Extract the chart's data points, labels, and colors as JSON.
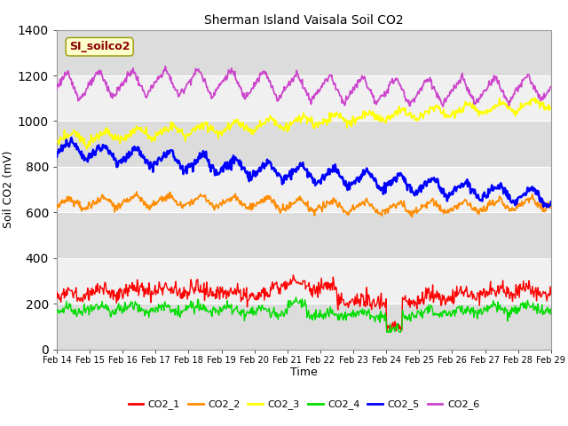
{
  "title": "Sherman Island Vaisala Soil CO2",
  "xlabel": "Time",
  "ylabel": "Soil CO2 (mV)",
  "legend_label": "SI_soilco2",
  "x_tick_labels": [
    "Feb 14",
    "Feb 15",
    "Feb 16",
    "Feb 17",
    "Feb 18",
    "Feb 19",
    "Feb 20",
    "Feb 21",
    "Feb 22",
    "Feb 23",
    "Feb 24",
    "Feb 25",
    "Feb 26",
    "Feb 27",
    "Feb 28",
    "Feb 29"
  ],
  "ylim": [
    0,
    1400
  ],
  "yticks": [
    0,
    200,
    400,
    600,
    800,
    1000,
    1200,
    1400
  ],
  "series_names": [
    "CO2_1",
    "CO2_2",
    "CO2_3",
    "CO2_4",
    "CO2_5",
    "CO2_6"
  ],
  "series_colors": [
    "#ff0000",
    "#ff8c00",
    "#ffff00",
    "#00dd00",
    "#0000ff",
    "#cc44cc"
  ],
  "background_color": "#ffffff",
  "plot_bg_color": "#f0f0f0",
  "shaded_band_color": "#dcdcdc",
  "n_points": 720,
  "n_days": 15
}
